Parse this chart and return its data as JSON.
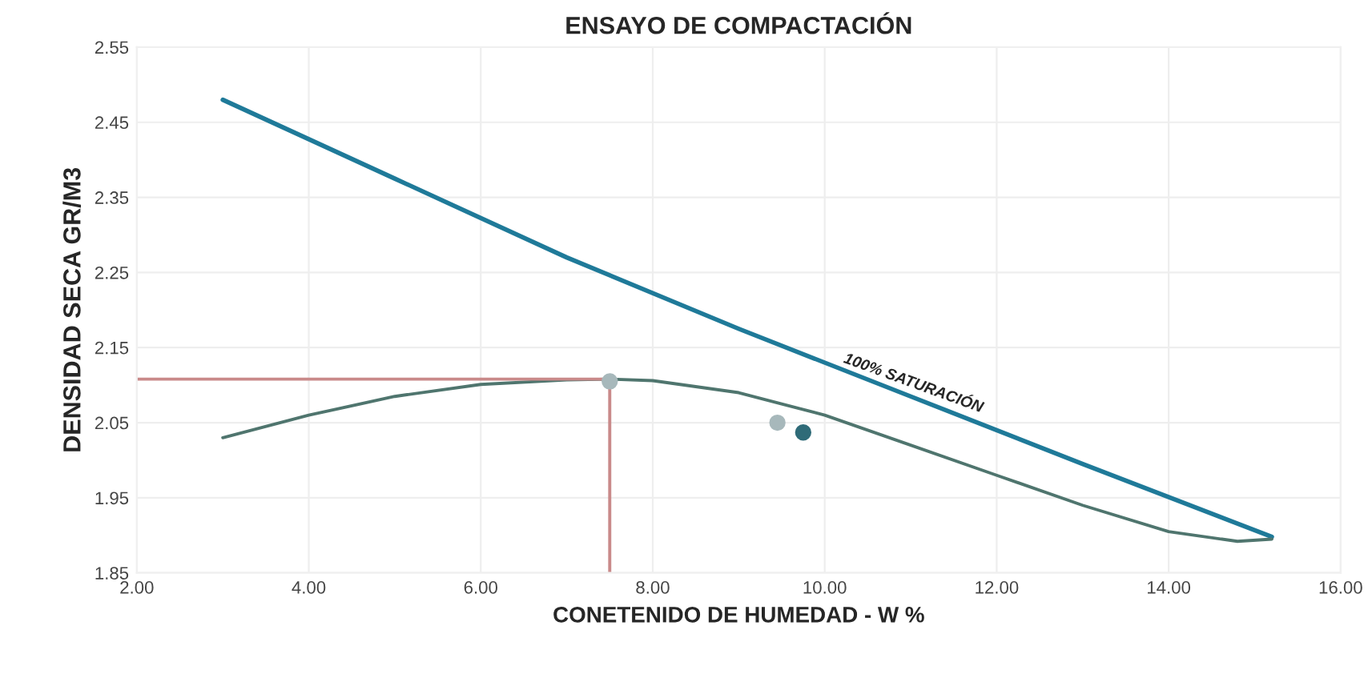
{
  "chart_data": {
    "type": "line",
    "title": "ENSAYO DE COMPACTACIÓN",
    "xlabel": "CONETENIDO DE HUMEDAD - W %",
    "ylabel": "DENSIDAD SECA GR/M3",
    "xlim": [
      2,
      16
    ],
    "xticks": [
      {
        "value": 2,
        "label": "2.00"
      },
      {
        "value": 4,
        "label": "4.00"
      },
      {
        "value": 6,
        "label": "6.00"
      },
      {
        "value": 8,
        "label": "8.00"
      },
      {
        "value": 10,
        "label": "10.00"
      },
      {
        "value": 12,
        "label": "12.00"
      },
      {
        "value": 14,
        "label": "14.00"
      },
      {
        "value": 16,
        "label": "16.00"
      }
    ],
    "ylim": [
      1.85,
      2.55
    ],
    "yticks": [
      1.85,
      1.95,
      2.05,
      2.15,
      2.25,
      2.35,
      2.45,
      2.55
    ],
    "grid": true,
    "legend": false,
    "marker": "none",
    "line_style": "solid",
    "series": [
      {
        "color": "#1f7a99",
        "x": [
          3,
          5,
          7,
          9,
          11,
          13,
          15.2
        ],
        "values": [
          2.48,
          2.375,
          2.27,
          2.175,
          2.085,
          1.995,
          1.898
        ]
      },
      {
        "color": "#4f756e",
        "x": [
          3,
          4,
          5,
          6,
          7,
          7.5,
          8,
          9,
          10,
          11,
          12,
          13,
          14,
          14.8,
          15.2
        ],
        "values": [
          2.03,
          2.06,
          2.085,
          2.101,
          2.107,
          2.108,
          2.106,
          2.09,
          2.06,
          2.02,
          1.98,
          1.94,
          1.905,
          1.892,
          1.895
        ]
      },
      {
        "color": "#c98a8a",
        "x": [
          2,
          7.5
        ],
        "values": [
          2.108,
          2.108
        ]
      },
      {
        "color": "#c98a8a",
        "x": [
          7.5,
          7.5
        ],
        "values": [
          1.85,
          2.108
        ]
      },
      {
        "type": "scatter",
        "marker": "circle",
        "colors": [
          "#a7b8bb",
          "#a7b8bb",
          "#2f6b78"
        ],
        "x": [
          7.5,
          9.45,
          9.75
        ],
        "values": [
          2.105,
          2.05,
          2.037
        ]
      }
    ],
    "annotations": [
      "100% SATURACIÓN"
    ]
  }
}
